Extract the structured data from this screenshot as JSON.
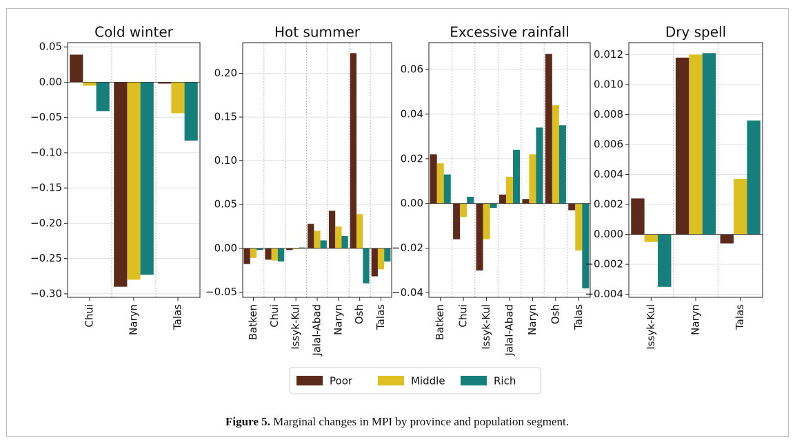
{
  "chart_data": [
    {
      "type": "bar",
      "title": "Cold winter",
      "categories": [
        "Chui",
        "Naryn",
        "Talas"
      ],
      "series": [
        {
          "name": "Poor",
          "color": "#5c2a1b",
          "values": [
            0.039,
            -0.29,
            -0.002
          ]
        },
        {
          "name": "Middle",
          "color": "#dcbf22",
          "values": [
            -0.005,
            -0.28,
            -0.044
          ]
        },
        {
          "name": "Rich",
          "color": "#167f7c",
          "values": [
            -0.041,
            -0.273,
            -0.083
          ]
        }
      ],
      "ylim": [
        -0.305,
        0.056
      ],
      "yticks": [
        {
          "value": -0.3,
          "label": "−0.30"
        },
        {
          "value": -0.25,
          "label": "−0.25"
        },
        {
          "value": -0.2,
          "label": "−0.20"
        },
        {
          "value": -0.15,
          "label": "−0.15"
        },
        {
          "value": -0.1,
          "label": "−0.10"
        },
        {
          "value": -0.05,
          "label": "−0.05"
        },
        {
          "value": 0,
          "label": "0.00"
        },
        {
          "value": 0.05,
          "label": "0.05"
        }
      ],
      "grid": true
    },
    {
      "type": "bar",
      "title": "Hot summer",
      "categories": [
        "Batken",
        "Chui",
        "Issyk-Kul",
        "Jalal-Abad",
        "Naryn",
        "Osh",
        "Talas"
      ],
      "series": [
        {
          "name": "Poor",
          "color": "#5c2a1b",
          "values": [
            -0.018,
            -0.013,
            -0.002,
            0.028,
            0.043,
            0.223,
            -0.032
          ]
        },
        {
          "name": "Middle",
          "color": "#dcbf22",
          "values": [
            -0.011,
            -0.014,
            -0.001,
            0.02,
            0.025,
            0.039,
            -0.024
          ]
        },
        {
          "name": "Rich",
          "color": "#167f7c",
          "values": [
            -0.002,
            -0.015,
            0.001,
            0.009,
            0.014,
            -0.04,
            -0.015
          ]
        }
      ],
      "ylim": [
        -0.056,
        0.235
      ],
      "yticks": [
        {
          "value": -0.05,
          "label": "−0.05"
        },
        {
          "value": 0,
          "label": "0.00"
        },
        {
          "value": 0.05,
          "label": "0.05"
        },
        {
          "value": 0.1,
          "label": "0.10"
        },
        {
          "value": 0.15,
          "label": "0.15"
        },
        {
          "value": 0.2,
          "label": "0.20"
        }
      ],
      "grid": true
    },
    {
      "type": "bar",
      "title": "Excessive rainfall",
      "categories": [
        "Batken",
        "Chui",
        "Issyk-Kul",
        "Jalal-Abad",
        "Naryn",
        "Osh",
        "Talas"
      ],
      "series": [
        {
          "name": "Poor",
          "color": "#5c2a1b",
          "values": [
            0.022,
            -0.016,
            -0.03,
            0.004,
            0.002,
            0.067,
            -0.003
          ]
        },
        {
          "name": "Middle",
          "color": "#dcbf22",
          "values": [
            0.018,
            -0.006,
            -0.016,
            0.012,
            0.022,
            0.044,
            -0.021
          ]
        },
        {
          "name": "Rich",
          "color": "#167f7c",
          "values": [
            0.013,
            0.003,
            -0.002,
            0.024,
            0.034,
            0.035,
            -0.038
          ]
        }
      ],
      "ylim": [
        -0.042,
        0.072
      ],
      "yticks": [
        {
          "value": -0.04,
          "label": "−0.04"
        },
        {
          "value": -0.02,
          "label": "−0.02"
        },
        {
          "value": 0,
          "label": "0.00"
        },
        {
          "value": 0.02,
          "label": "0.02"
        },
        {
          "value": 0.04,
          "label": "0.04"
        },
        {
          "value": 0.06,
          "label": "0.06"
        }
      ],
      "grid": true
    },
    {
      "type": "bar",
      "title": "Dry spell",
      "categories": [
        "Issyk-Kul",
        "Naryn",
        "Talas"
      ],
      "series": [
        {
          "name": "Poor",
          "color": "#5c2a1b",
          "values": [
            0.0024,
            0.0118,
            -0.0006
          ]
        },
        {
          "name": "Middle",
          "color": "#dcbf22",
          "values": [
            -0.0005,
            0.012,
            0.0037
          ]
        },
        {
          "name": "Rich",
          "color": "#167f7c",
          "values": [
            -0.0035,
            0.0121,
            0.0076
          ]
        }
      ],
      "ylim": [
        -0.0042,
        0.0128
      ],
      "yticks": [
        {
          "value": -0.004,
          "label": "−0.004"
        },
        {
          "value": -0.002,
          "label": "−0.002"
        },
        {
          "value": 0,
          "label": "0.000"
        },
        {
          "value": 0.002,
          "label": "0.002"
        },
        {
          "value": 0.004,
          "label": "0.004"
        },
        {
          "value": 0.006,
          "label": "0.006"
        },
        {
          "value": 0.008,
          "label": "0.008"
        },
        {
          "value": 0.01,
          "label": "0.010"
        },
        {
          "value": 0.012,
          "label": "0.012"
        }
      ],
      "grid": true
    }
  ],
  "caption_label": "Figure 5.",
  "caption": "Marginal changes in MPI by province and population segment."
}
